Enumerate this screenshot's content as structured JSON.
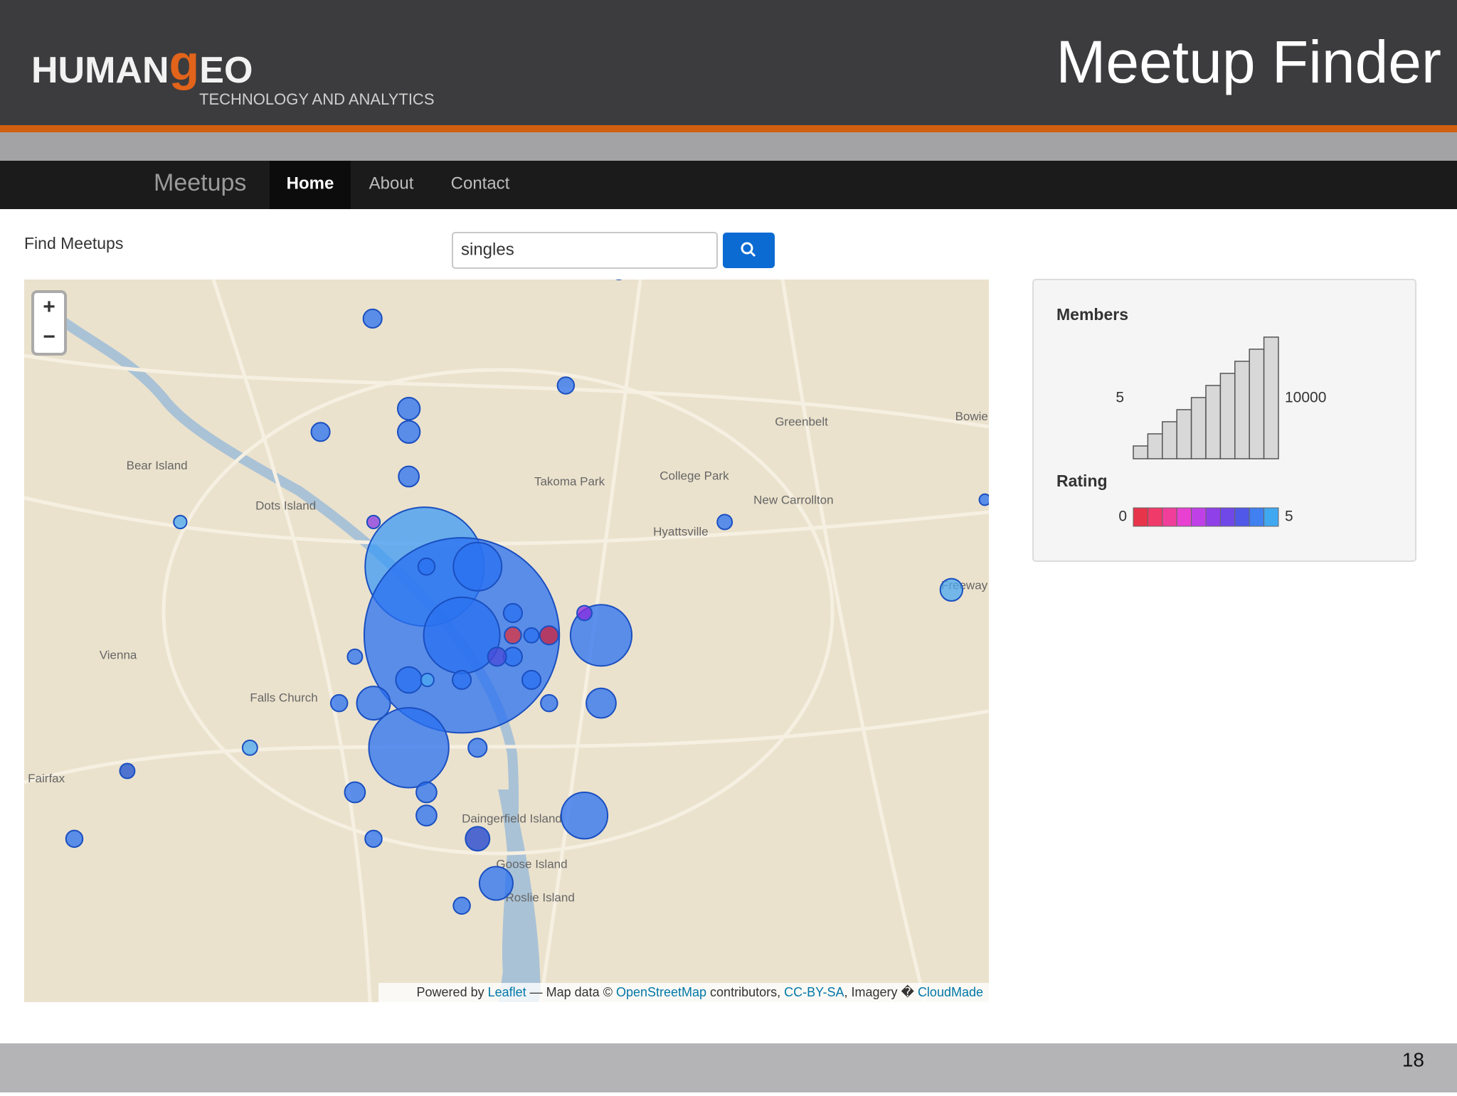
{
  "header": {
    "logo_left": "HUMAN",
    "logo_accent": "g",
    "logo_right": "EO",
    "tagline": "TECHNOLOGY AND ANALYTICS",
    "title": "Meetup Finder"
  },
  "nav": {
    "brand": "Meetups",
    "items": [
      "Home",
      "About",
      "Contact"
    ]
  },
  "search": {
    "label": "Find Meetups",
    "query": "singles"
  },
  "map": {
    "zoom_in": "+",
    "zoom_out": "−",
    "labels": [
      "Bear Island",
      "Dots Island",
      "Vienna",
      "Falls Church",
      "Fairfax",
      "Takoma Park",
      "College Park",
      "Greenbelt",
      "Bowie",
      "New Carrollton",
      "Hyattsville",
      "Freeway",
      "Daingerfield Island",
      "Goose Island",
      "Roslie Island"
    ],
    "attribution": {
      "prefix": "Powered by ",
      "leaflet": "Leaflet",
      "mid": " — Map data © ",
      "osm": "OpenStreetMap",
      "contributors": " contributors, ",
      "license": "CC-BY-SA",
      "imagery": ", Imagery � ",
      "cloudmade": "CloudMade"
    }
  },
  "legend": {
    "members_title": "Members",
    "members_min": 5,
    "members_max": 10000,
    "rating_title": "Rating",
    "rating_min": 0,
    "rating_max": 5
  },
  "footer": {
    "page_number": 18
  }
}
